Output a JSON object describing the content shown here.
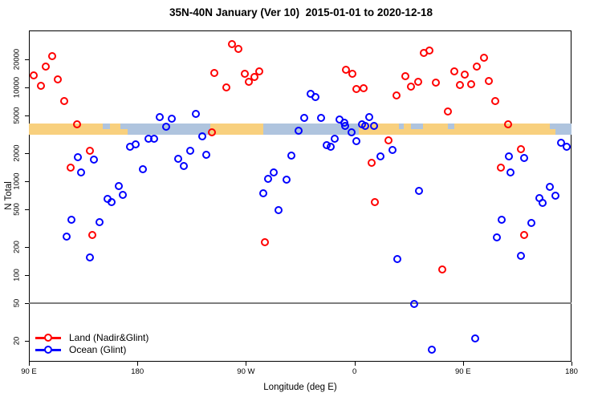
{
  "title": "35N-40N January (Ver 10)  2015-01-01 to 2020-12-18",
  "colors": {
    "land": "#ff0000",
    "ocean": "#0000ff",
    "band_land": "#f8d07e",
    "band_ocean": "#afc4de",
    "ref_line": "#7f7f7f",
    "axis": "#000000"
  },
  "legend": [
    {
      "key": "land",
      "label": "Land (Nadir&Glint)"
    },
    {
      "key": "ocean",
      "label": "Ocean (Glint)"
    }
  ],
  "chart_data": {
    "type": "scatter",
    "title": "35N-40N January (Ver 10)  2015-01-01 to 2020-12-18",
    "xlabel": "Longitude (deg E)",
    "ylabel": "N Total",
    "x_axis": {
      "note": "longitude increases eastward and wraps; 450 deg span",
      "range": [
        90,
        540
      ],
      "ticks": [
        {
          "lon": 90,
          "label": "90 E"
        },
        {
          "lon": 180,
          "label": "180"
        },
        {
          "lon": 270,
          "label": "90 W"
        },
        {
          "lon": 360,
          "label": "0"
        },
        {
          "lon": 450,
          "label": "90 E"
        },
        {
          "lon": 540,
          "label": "180"
        }
      ]
    },
    "y_axis": {
      "scale": "log",
      "range": [
        9,
        44000
      ],
      "ticks": [
        20000,
        10000,
        5000,
        2000,
        1000,
        500,
        200,
        100,
        50,
        20
      ]
    },
    "ref_line_n": 50,
    "band": {
      "n_top": 4100,
      "n_bottom": 3150,
      "segments": [
        {
          "type": "land",
          "from": 90,
          "to": 166
        },
        {
          "type": "ocean",
          "from": 166,
          "to": 240.4
        },
        {
          "type": "land",
          "from": 240.4,
          "to": 284.4
        },
        {
          "type": "ocean",
          "from": 284.4,
          "to": 363.6
        },
        {
          "type": "land",
          "from": 363.6,
          "to": 522
        },
        {
          "type": "ocean",
          "from": 522,
          "to": 540
        }
      ],
      "patches": [
        {
          "type": "ocean",
          "from": 151,
          "to": 157,
          "part": "top"
        },
        {
          "type": "land",
          "from": 166,
          "to": 172,
          "part": "bottom"
        },
        {
          "type": "ocean",
          "from": 396.9,
          "to": 400.9,
          "part": "top"
        },
        {
          "type": "ocean",
          "from": 406.9,
          "to": 417,
          "part": "top"
        },
        {
          "type": "ocean",
          "from": 437.5,
          "to": 442.8,
          "part": "top"
        },
        {
          "type": "land",
          "from": 522,
          "to": 527,
          "part": "bottom"
        }
      ]
    },
    "series": [
      {
        "name": "Land (Nadir&Glint)",
        "color_key": "land",
        "points": [
          [
            109.3,
            21500
          ],
          [
            104,
            16700
          ],
          [
            94,
            13400
          ],
          [
            100,
            10400
          ],
          [
            114,
            12200
          ],
          [
            119.3,
            7160
          ],
          [
            129.9,
            4040
          ],
          [
            140.6,
            2110
          ],
          [
            124.6,
            1400
          ],
          [
            142.6,
            267
          ],
          [
            243.8,
            14300
          ],
          [
            241.8,
            3320
          ],
          [
            258.4,
            29000
          ],
          [
            263.7,
            25700
          ],
          [
            269.1,
            14000
          ],
          [
            281.1,
            14800
          ],
          [
            277.1,
            12900
          ],
          [
            272.4,
            11500
          ],
          [
            253.7,
            10000
          ],
          [
            353,
            15400
          ],
          [
            358.3,
            14000
          ],
          [
            361.6,
            9620
          ],
          [
            367.6,
            9790
          ],
          [
            394.9,
            8220
          ],
          [
            388.2,
            2730
          ],
          [
            374.2,
            1570
          ],
          [
            376.9,
            600
          ],
          [
            285.7,
            224
          ],
          [
            417.5,
            23300
          ],
          [
            422.1,
            24700
          ],
          [
            467.4,
            20700
          ],
          [
            461.4,
            16700
          ],
          [
            442.8,
            14800
          ],
          [
            451.5,
            13700
          ],
          [
            402.2,
            13200
          ],
          [
            412.9,
            11500
          ],
          [
            427.5,
            11300
          ],
          [
            447.5,
            10600
          ],
          [
            456.8,
            10800
          ],
          [
            471.4,
            11700
          ],
          [
            406.9,
            10200
          ],
          [
            476.8,
            7160
          ],
          [
            437.5,
            5550
          ],
          [
            487.4,
            4040
          ],
          [
            498.1,
            2200
          ],
          [
            481.4,
            1400
          ],
          [
            500.7,
            267
          ],
          [
            432.8,
            115
          ]
        ]
      },
      {
        "name": "Ocean (Glint)",
        "color_key": "ocean",
        "points": [
          [
            198.5,
            4830
          ],
          [
            208.5,
            4650
          ],
          [
            228.5,
            5220
          ],
          [
            203.8,
            3810
          ],
          [
            233.8,
            3010
          ],
          [
            189.2,
            2840
          ],
          [
            193.9,
            2840
          ],
          [
            173.9,
            2330
          ],
          [
            178.5,
            2470
          ],
          [
            130.6,
            1800
          ],
          [
            143.9,
            1700
          ],
          [
            133.3,
            1240
          ],
          [
            184.5,
            1340
          ],
          [
            213.8,
            1740
          ],
          [
            223.8,
            2110
          ],
          [
            218.5,
            1450
          ],
          [
            237.1,
            1910
          ],
          [
            164.6,
            890
          ],
          [
            167.9,
            716
          ],
          [
            155.2,
            649
          ],
          [
            158.6,
            600
          ],
          [
            125.3,
            389
          ],
          [
            148.6,
            366
          ],
          [
            121.3,
            257
          ],
          [
            140.6,
            154
          ],
          [
            323.7,
            8550
          ],
          [
            327.7,
            7890
          ],
          [
            318.4,
            4730
          ],
          [
            332.4,
            4730
          ],
          [
            313.7,
            3450
          ],
          [
            347.7,
            4550
          ],
          [
            351.6,
            4210
          ],
          [
            352.3,
            3890
          ],
          [
            357.6,
            3320
          ],
          [
            343.6,
            2840
          ],
          [
            361.6,
            2670
          ],
          [
            337,
            2430
          ],
          [
            340.3,
            2330
          ],
          [
            372.2,
            4830
          ],
          [
            366.2,
            4040
          ],
          [
            368.9,
            3890
          ],
          [
            376.2,
            3890
          ],
          [
            381.6,
            1840
          ],
          [
            391.6,
            2150
          ],
          [
            307.7,
            1880
          ],
          [
            293.1,
            1240
          ],
          [
            288.4,
            1060
          ],
          [
            303.7,
            1040
          ],
          [
            284.4,
            745
          ],
          [
            297.1,
            492
          ],
          [
            531.4,
            2570
          ],
          [
            536.1,
            2330
          ],
          [
            488.1,
            1840
          ],
          [
            500.7,
            1770
          ],
          [
            489.4,
            1240
          ],
          [
            413.5,
            789
          ],
          [
            522,
            871
          ],
          [
            513.4,
            662
          ],
          [
            516,
            588
          ],
          [
            526.7,
            702
          ],
          [
            482.1,
            389
          ],
          [
            506.7,
            360
          ],
          [
            478.1,
            252
          ],
          [
            498.1,
            160
          ],
          [
            395.6,
            148
          ],
          [
            409.6,
            49
          ],
          [
            424.2,
            16
          ],
          [
            460.1,
            21
          ]
        ]
      }
    ]
  }
}
